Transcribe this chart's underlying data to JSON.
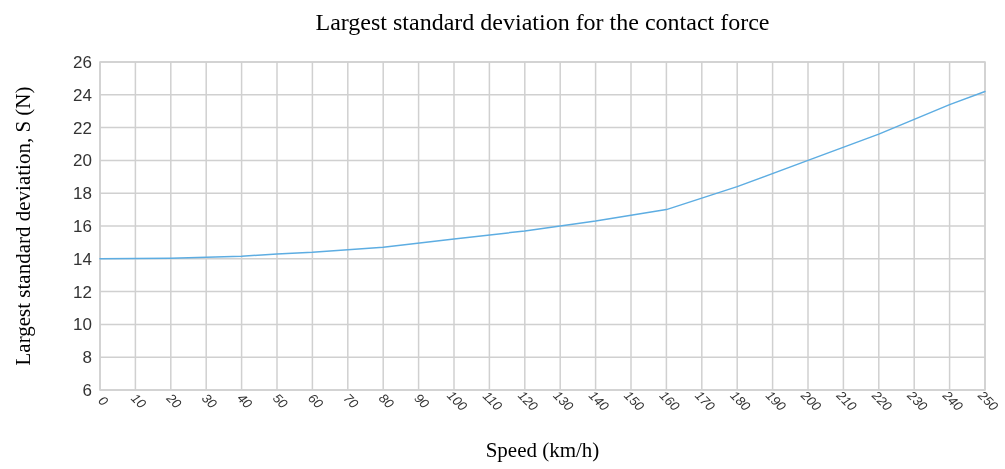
{
  "chart_data": {
    "type": "line",
    "title": "Largest standard deviation for the contact force",
    "xlabel": "Speed (km/h)",
    "ylabel": "Largest standard deviation, S (N)",
    "x": [
      0,
      20,
      40,
      50,
      60,
      80,
      100,
      120,
      140,
      160,
      180,
      200,
      220,
      240,
      250
    ],
    "series": [
      {
        "color": "#5dade2",
        "values": [
          14.0,
          14.03,
          14.15,
          14.3,
          14.4,
          14.7,
          15.2,
          15.7,
          16.3,
          17.0,
          18.4,
          20.0,
          21.6,
          23.4,
          24.2
        ]
      }
    ],
    "xlim": [
      0,
      250
    ],
    "xticks": [
      0,
      10,
      20,
      30,
      40,
      50,
      60,
      70,
      80,
      90,
      100,
      110,
      120,
      130,
      140,
      150,
      160,
      170,
      180,
      190,
      200,
      210,
      220,
      230,
      240,
      250
    ],
    "ylim": [
      6,
      26
    ],
    "yticks": [
      6,
      8,
      10,
      12,
      14,
      16,
      18,
      20,
      22,
      24,
      26
    ],
    "grid": true,
    "marker": "none",
    "line_style": "solid"
  }
}
